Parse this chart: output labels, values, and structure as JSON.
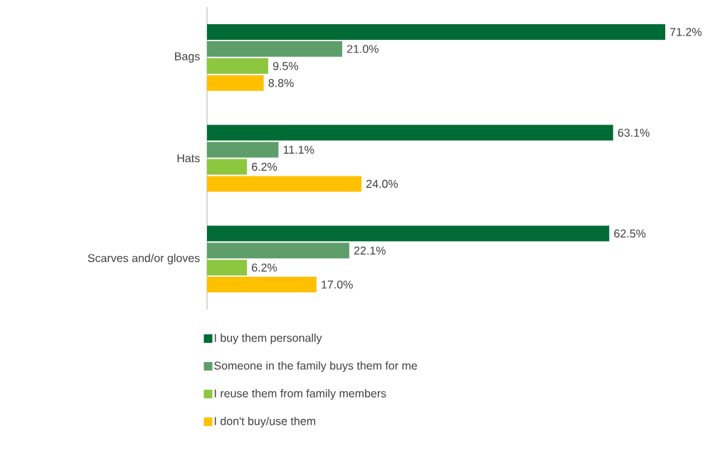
{
  "chart_data": {
    "type": "bar",
    "orientation": "horizontal",
    "categories": [
      "Bags",
      "Hats",
      "Scarves and/or gloves"
    ],
    "series": [
      {
        "name": "I buy them personally",
        "color": "#006b35",
        "values": [
          71.2,
          63.1,
          62.5
        ],
        "value_labels": [
          "71.2%",
          "63.1%",
          "62.5%"
        ]
      },
      {
        "name": "Someone in the family buys them for me",
        "color": "#5e9e6a",
        "values": [
          21.0,
          11.1,
          22.1
        ],
        "value_labels": [
          "21.0%",
          "11.1%",
          "22.1%"
        ]
      },
      {
        "name": "I reuse them from family members",
        "color": "#8dc63f",
        "values": [
          9.5,
          6.2,
          6.2
        ],
        "value_labels": [
          "9.5%",
          "6.2%",
          "6.2%"
        ]
      },
      {
        "name": "I don't buy/use them",
        "color": "#ffc000",
        "values": [
          8.8,
          24.0,
          17.0
        ],
        "value_labels": [
          "8.8%",
          "24.0%",
          "17.0%"
        ]
      }
    ],
    "tick_labels": "y",
    "legend": "bottom"
  }
}
